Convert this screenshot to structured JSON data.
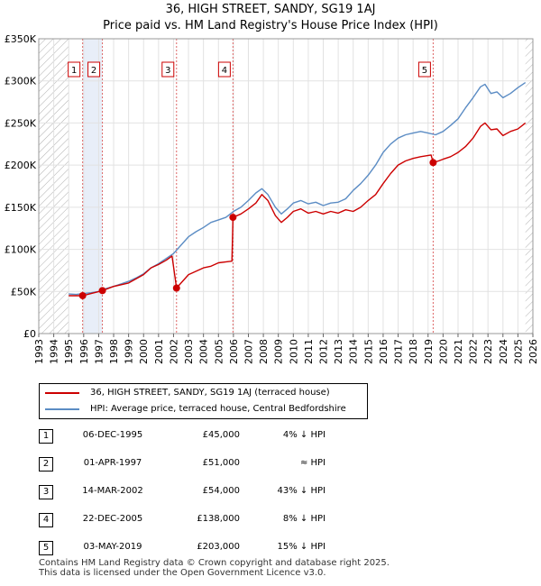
{
  "title": "36, HIGH STREET, SANDY, SG19 1AJ",
  "subtitle": "Price paid vs. HM Land Registry's House Price Index (HPI)",
  "colors": {
    "property": "#cc0000",
    "hpi": "#5b8cc4",
    "shade": "#e8eef8",
    "hatch": "#b0b0b0"
  },
  "chart_data": {
    "type": "line",
    "title": "Price paid vs. HM Land Registry's House Price Index (HPI)",
    "xlabel": "",
    "ylabel": "",
    "xlim": [
      1993,
      2026
    ],
    "ylim": [
      0,
      350000
    ],
    "y_ticks": [
      0,
      50000,
      100000,
      150000,
      200000,
      250000,
      300000,
      350000
    ],
    "y_tick_labels": [
      "£0",
      "£50K",
      "£100K",
      "£150K",
      "£200K",
      "£250K",
      "£300K",
      "£350K"
    ],
    "x_ticks": [
      1993,
      1994,
      1995,
      1996,
      1997,
      1998,
      1999,
      2000,
      2001,
      2002,
      2003,
      2004,
      2005,
      2006,
      2007,
      2008,
      2009,
      2010,
      2011,
      2012,
      2013,
      2014,
      2015,
      2016,
      2017,
      2018,
      2019,
      2020,
      2021,
      2022,
      2023,
      2024,
      2025,
      2026
    ],
    "x_tick_labels": [
      "1993",
      "1994",
      "1995",
      "1996",
      "1997",
      "1998",
      "1999",
      "2000",
      "2001",
      "2002",
      "2003",
      "2004",
      "2005",
      "2006",
      "2007",
      "2008",
      "2009",
      "2010",
      "2011",
      "2012",
      "2013",
      "2014",
      "2015",
      "2016",
      "2017",
      "2018",
      "2019",
      "2020",
      "2021",
      "2022",
      "2023",
      "2024",
      "2025",
      "2026"
    ],
    "data_range": [
      1995.0,
      2025.5
    ],
    "series": [
      {
        "name": "36, HIGH STREET, SANDY, SG19 1AJ (terraced house)",
        "points": [
          [
            1995.0,
            45000
          ],
          [
            1995.93,
            45000
          ],
          [
            1996.5,
            47500
          ],
          [
            1997.25,
            51000
          ],
          [
            1998.0,
            56000
          ],
          [
            1999.0,
            60000
          ],
          [
            2000.0,
            70000
          ],
          [
            2000.5,
            78000
          ],
          [
            2001.0,
            82000
          ],
          [
            2001.5,
            87000
          ],
          [
            2001.9,
            92000
          ],
          [
            2002.2,
            54000
          ],
          [
            2002.5,
            60000
          ],
          [
            2003.0,
            70000
          ],
          [
            2004.0,
            78000
          ],
          [
            2004.5,
            80000
          ],
          [
            2005.0,
            84000
          ],
          [
            2005.9,
            86000
          ],
          [
            2005.97,
            138000
          ],
          [
            2006.5,
            142000
          ],
          [
            2007.0,
            148000
          ],
          [
            2007.5,
            155000
          ],
          [
            2007.9,
            165000
          ],
          [
            2008.3,
            158000
          ],
          [
            2008.8,
            140000
          ],
          [
            2009.2,
            132000
          ],
          [
            2009.6,
            138000
          ],
          [
            2010.0,
            145000
          ],
          [
            2010.5,
            148000
          ],
          [
            2011.0,
            143000
          ],
          [
            2011.5,
            145000
          ],
          [
            2012.0,
            142000
          ],
          [
            2012.5,
            145000
          ],
          [
            2013.0,
            143000
          ],
          [
            2013.5,
            147000
          ],
          [
            2014.0,
            145000
          ],
          [
            2014.5,
            150000
          ],
          [
            2015.0,
            158000
          ],
          [
            2015.5,
            165000
          ],
          [
            2016.0,
            178000
          ],
          [
            2016.5,
            190000
          ],
          [
            2017.0,
            200000
          ],
          [
            2017.5,
            205000
          ],
          [
            2018.0,
            208000
          ],
          [
            2018.5,
            210000
          ],
          [
            2019.2,
            212000
          ],
          [
            2019.34,
            203000
          ],
          [
            2019.7,
            205000
          ],
          [
            2020.0,
            207000
          ],
          [
            2020.5,
            210000
          ],
          [
            2021.0,
            215000
          ],
          [
            2021.5,
            222000
          ],
          [
            2022.0,
            232000
          ],
          [
            2022.5,
            246000
          ],
          [
            2022.8,
            250000
          ],
          [
            2023.2,
            242000
          ],
          [
            2023.6,
            243000
          ],
          [
            2024.0,
            235000
          ],
          [
            2024.5,
            240000
          ],
          [
            2025.0,
            243000
          ],
          [
            2025.5,
            250000
          ]
        ]
      },
      {
        "name": "HPI: Average price, terraced house, Central Bedfordshire",
        "points": [
          [
            1995.0,
            47000
          ],
          [
            1995.5,
            46500
          ],
          [
            1996.0,
            47500
          ],
          [
            1996.5,
            48500
          ],
          [
            1997.0,
            50000
          ],
          [
            1997.5,
            53500
          ],
          [
            1998.0,
            56000
          ],
          [
            1998.5,
            59000
          ],
          [
            1999.0,
            62000
          ],
          [
            1999.5,
            66000
          ],
          [
            2000.0,
            71000
          ],
          [
            2000.5,
            78000
          ],
          [
            2001.0,
            83000
          ],
          [
            2001.5,
            89000
          ],
          [
            2002.0,
            95000
          ],
          [
            2002.5,
            105000
          ],
          [
            2003.0,
            115000
          ],
          [
            2003.5,
            121000
          ],
          [
            2004.0,
            126000
          ],
          [
            2004.5,
            132000
          ],
          [
            2005.0,
            135000
          ],
          [
            2005.5,
            138000
          ],
          [
            2006.0,
            145000
          ],
          [
            2006.5,
            150000
          ],
          [
            2007.0,
            158000
          ],
          [
            2007.5,
            167000
          ],
          [
            2007.9,
            172000
          ],
          [
            2008.3,
            165000
          ],
          [
            2008.8,
            150000
          ],
          [
            2009.2,
            142000
          ],
          [
            2009.6,
            148000
          ],
          [
            2010.0,
            155000
          ],
          [
            2010.5,
            158000
          ],
          [
            2011.0,
            154000
          ],
          [
            2011.5,
            156000
          ],
          [
            2012.0,
            152000
          ],
          [
            2012.5,
            155000
          ],
          [
            2013.0,
            156000
          ],
          [
            2013.5,
            160000
          ],
          [
            2014.0,
            170000
          ],
          [
            2014.5,
            178000
          ],
          [
            2015.0,
            188000
          ],
          [
            2015.5,
            200000
          ],
          [
            2016.0,
            215000
          ],
          [
            2016.5,
            225000
          ],
          [
            2017.0,
            232000
          ],
          [
            2017.5,
            236000
          ],
          [
            2018.0,
            238000
          ],
          [
            2018.5,
            240000
          ],
          [
            2019.0,
            238000
          ],
          [
            2019.5,
            236000
          ],
          [
            2020.0,
            240000
          ],
          [
            2020.5,
            247000
          ],
          [
            2021.0,
            255000
          ],
          [
            2021.5,
            268000
          ],
          [
            2022.0,
            280000
          ],
          [
            2022.5,
            293000
          ],
          [
            2022.8,
            296000
          ],
          [
            2023.2,
            285000
          ],
          [
            2023.6,
            287000
          ],
          [
            2024.0,
            280000
          ],
          [
            2024.5,
            285000
          ],
          [
            2025.0,
            292000
          ],
          [
            2025.5,
            298000
          ]
        ]
      }
    ],
    "sales": [
      {
        "label": "1",
        "year": 1995.93,
        "price": 45000
      },
      {
        "label": "2",
        "year": 1997.25,
        "price": 51000
      },
      {
        "label": "3",
        "year": 2002.2,
        "price": 54000
      },
      {
        "label": "4",
        "year": 2005.97,
        "price": 138000
      },
      {
        "label": "5",
        "year": 2019.34,
        "price": 203000
      }
    ],
    "shaded_ranges": [
      [
        1995.93,
        1997.25
      ]
    ]
  },
  "legend": {
    "property": "36, HIGH STREET, SANDY, SG19 1AJ (terraced house)",
    "hpi": "HPI: Average price, terraced house, Central Bedfordshire"
  },
  "transactions": [
    {
      "num": "1",
      "date": "06-DEC-1995",
      "price": "£45,000",
      "hpi": "4% ↓ HPI"
    },
    {
      "num": "2",
      "date": "01-APR-1997",
      "price": "£51,000",
      "hpi": "≈ HPI"
    },
    {
      "num": "3",
      "date": "14-MAR-2002",
      "price": "£54,000",
      "hpi": "43% ↓ HPI"
    },
    {
      "num": "4",
      "date": "22-DEC-2005",
      "price": "£138,000",
      "hpi": "8% ↓ HPI"
    },
    {
      "num": "5",
      "date": "03-MAY-2019",
      "price": "£203,000",
      "hpi": "15% ↓ HPI"
    }
  ],
  "footer": {
    "line1": "Contains HM Land Registry data © Crown copyright and database right 2025.",
    "line2": "This data is licensed under the Open Government Licence v3.0."
  }
}
